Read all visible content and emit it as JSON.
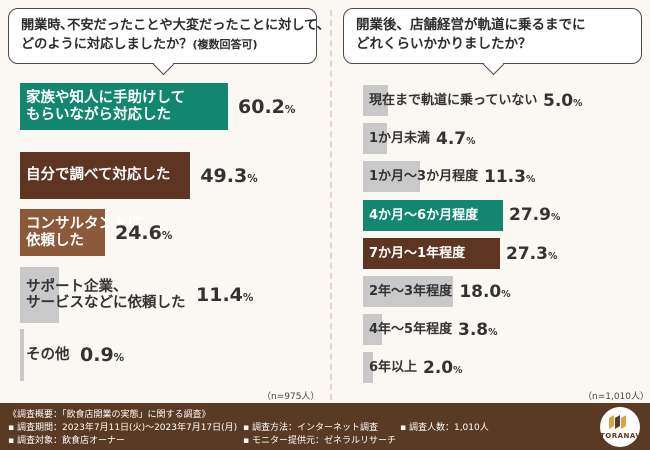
{
  "left_question_line1": "開業時､不安だったことや大変だったことに対して、",
  "left_question_line2": "どのように対応しましたか？",
  "left_question_note": "(複数回答可)",
  "right_question_line1": "開業後、店舗経営が軌道に乗るまでに",
  "right_question_line2": "どれくらいかかりましたか？",
  "left_n": "（n=975人）",
  "right_n": "（n=1,010人）",
  "colors": {
    "teal": "#13866f",
    "brown": "#5e3520",
    "tan": "#8c5a3a",
    "gray": "#c9c9c9",
    "text": "#333333"
  },
  "chart_data": [
    {
      "type": "bar",
      "orientation": "horizontal",
      "unit": "%",
      "categories": [
        "家族や知人に手助けして\nもらいながら対応した",
        "自分で調べて対応した",
        "コンサルタントに\n依頼した",
        "サポート企業、\nサービスなどに依頼した",
        "その他"
      ],
      "values": [
        60.2,
        49.3,
        24.6,
        11.4,
        0.9
      ],
      "colors": [
        "teal",
        "brown",
        "tan",
        "gray",
        "gray"
      ]
    },
    {
      "type": "bar",
      "orientation": "horizontal",
      "unit": "%",
      "categories": [
        "現在まで軌道に乗っていない",
        "1か月未満",
        "1か月〜3か月程度",
        "4か月〜6か月程度",
        "7か月〜1年程度",
        "2年〜3年程度",
        "4年〜5年程度",
        "6年以上"
      ],
      "values": [
        5.0,
        4.7,
        11.3,
        27.9,
        27.3,
        18.0,
        3.8,
        2.0
      ],
      "colors": [
        "gray",
        "gray",
        "gray",
        "teal",
        "brown",
        "gray",
        "gray",
        "gray"
      ]
    }
  ],
  "footer": {
    "title": "《調査概要：「飲食店開業の実態」に関する調査》",
    "period": "調査期間：2023年7月11日(火)〜2023年7月17日(月)",
    "target": "調査対象：飲食店オーナー",
    "method": "調査方法：インターネット調査",
    "provider": "モニター提供元：ゼネラルリサーチ",
    "count": "調査人数：1,010人",
    "logo": "TORANAVI"
  }
}
